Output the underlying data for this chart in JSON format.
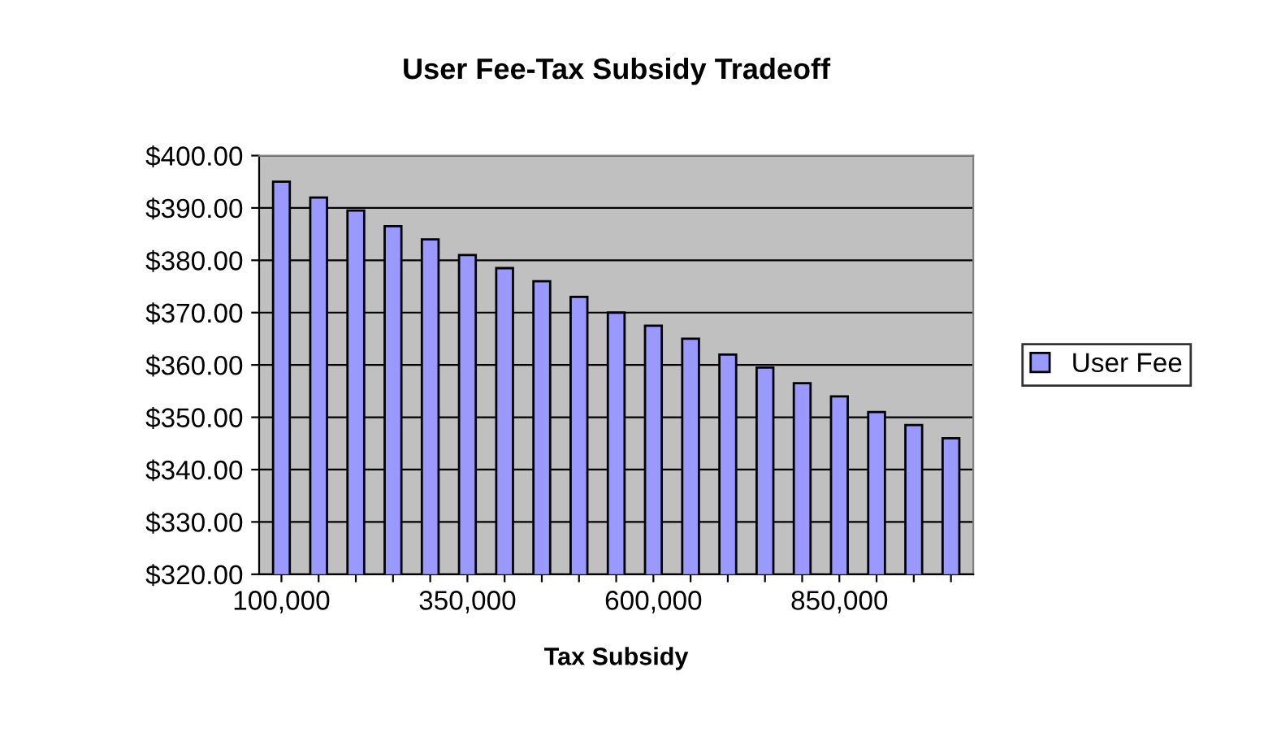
{
  "chart_data": {
    "type": "bar",
    "title": "User Fee-Tax Subsidy Tradeoff",
    "xlabel": "Tax Subsidy",
    "categories": [
      "100,000",
      null,
      null,
      null,
      null,
      "350,000",
      null,
      null,
      null,
      null,
      "600,000",
      null,
      null,
      null,
      null,
      "850,000",
      null,
      null,
      null
    ],
    "series": [
      {
        "name": "User Fee",
        "color": "#9999ff",
        "values": [
          395,
          392,
          389.5,
          386.5,
          384,
          381,
          378.5,
          376,
          373,
          370,
          367.5,
          365,
          362,
          359.5,
          356.5,
          354,
          351,
          348.5,
          346
        ]
      }
    ],
    "ylim": [
      320,
      400
    ],
    "yticks": [
      {
        "value": 320,
        "label": "$320.00"
      },
      {
        "value": 330,
        "label": "$330.00"
      },
      {
        "value": 340,
        "label": "$340.00"
      },
      {
        "value": 350,
        "label": "$350.00"
      },
      {
        "value": 360,
        "label": "$360.00"
      },
      {
        "value": 370,
        "label": "$370.00"
      },
      {
        "value": 380,
        "label": "$380.00"
      },
      {
        "value": 390,
        "label": "$390.00"
      },
      {
        "value": 400,
        "label": "$400.00"
      }
    ],
    "grid": "y",
    "legend": "right"
  }
}
